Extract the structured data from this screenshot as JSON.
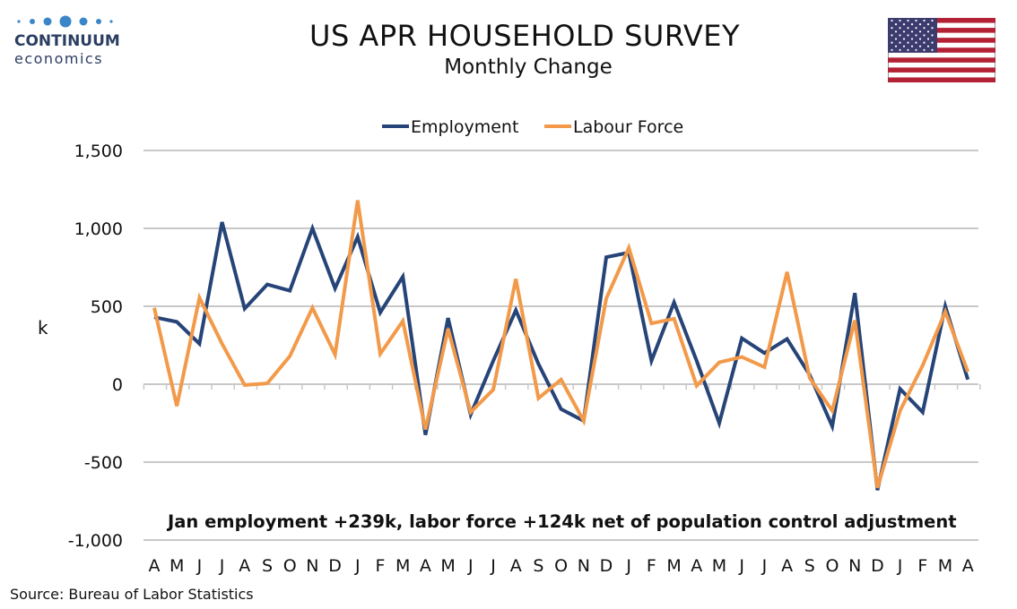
{
  "header": {
    "logo_name": "CONTINUUM",
    "logo_sub": "economics",
    "title": "US APR HOUSEHOLD SURVEY",
    "subtitle": "Monthly Change",
    "flag_icon": "us-flag-icon"
  },
  "footer": {
    "source": "Source: Bureau of Labor Statistics"
  },
  "colors": {
    "employment": "#264478",
    "labour_force": "#f29a4a",
    "grid": "#c8c8c8",
    "brand": "#2b3e62",
    "logo_dot": "#3a86c8"
  },
  "chart_data": {
    "type": "line",
    "title": "US APR HOUSEHOLD SURVEY",
    "subtitle": "Monthly Change",
    "ylabel": "k",
    "xlabel": "",
    "ylim": [
      -1000,
      1500
    ],
    "yticks": [
      -1000,
      -500,
      0,
      500,
      1000,
      1500
    ],
    "ytick_labels": [
      "-1,000",
      "-500",
      "0",
      "500",
      "1,000",
      "1,500"
    ],
    "grid": true,
    "legend_position": "top-center",
    "categories": [
      "A",
      "M",
      "J",
      "J",
      "A",
      "S",
      "O",
      "N",
      "D",
      "J",
      "F",
      "M",
      "A",
      "M",
      "J",
      "J",
      "A",
      "S",
      "O",
      "N",
      "D",
      "J",
      "F",
      "M",
      "A",
      "M",
      "J",
      "J",
      "A",
      "S",
      "O",
      "N",
      "D",
      "J",
      "F",
      "M",
      "A"
    ],
    "series": [
      {
        "name": "Employment",
        "values": [
          430,
          400,
          260,
          1040,
          485,
          640,
          600,
          1000,
          615,
          945,
          460,
          690,
          -325,
          425,
          -195,
          150,
          475,
          130,
          -160,
          -235,
          815,
          845,
          150,
          525,
          150,
          -250,
          295,
          200,
          290,
          60,
          -270,
          585,
          -680,
          -30,
          -180,
          500,
          30
        ]
      },
      {
        "name": "Labour Force",
        "values": [
          490,
          -140,
          555,
          260,
          -5,
          5,
          180,
          490,
          190,
          1180,
          195,
          405,
          -290,
          355,
          -180,
          -35,
          675,
          -90,
          30,
          -235,
          550,
          875,
          390,
          420,
          -10,
          140,
          175,
          110,
          720,
          40,
          -170,
          410,
          -665,
          -170,
          120,
          465,
          80
        ]
      }
    ],
    "annotations": [
      "Jan employment +239k, labor force +124k net of population control adjustment"
    ]
  }
}
